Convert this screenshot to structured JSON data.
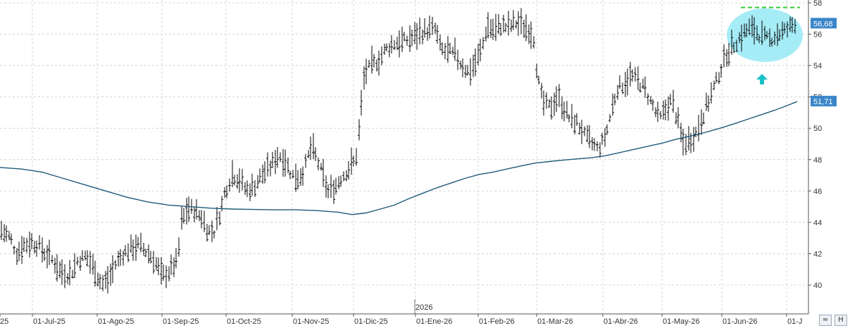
{
  "chart_data": {
    "type": "ohlc",
    "year_label": "2026",
    "x_tick_labels": [
      "25",
      "01-Jul-25",
      "01-Ago-25",
      "01-Sep-25",
      "01-Oct-25",
      "01-Nov-25",
      "01-Dic-25",
      "01-Ene-26",
      "01-Feb-26",
      "01-Mar-26",
      "01-Abr-26",
      "01-May-26",
      "01-Jun-26",
      "01-J"
    ],
    "y_ticks": [
      40,
      42,
      44,
      46,
      48,
      50,
      52,
      54,
      56,
      58
    ],
    "ylim": [
      38.5,
      58.1
    ],
    "grid": true,
    "last_price": {
      "value": 56.68,
      "label": "56,68",
      "color": "#3a86c8"
    },
    "moving_average": {
      "value": 51.71,
      "label": "51,71",
      "color": "#3a86c8",
      "line_color": "#1f5a7a"
    },
    "resistance_line": {
      "value": 57.7,
      "color": "#33cc33"
    },
    "highlight_color": "#a6ecf7",
    "arrow_color": "#19c2c9",
    "anchors": [
      [
        0,
        43.5
      ],
      [
        14,
        43
      ],
      [
        24,
        42
      ],
      [
        34,
        42.5
      ],
      [
        44,
        42.7
      ],
      [
        54,
        42.5
      ],
      [
        64,
        42
      ],
      [
        76,
        41.5
      ],
      [
        86,
        40.8
      ],
      [
        100,
        40.6
      ],
      [
        110,
        41.5
      ],
      [
        122,
        41.8
      ],
      [
        134,
        41
      ],
      [
        144,
        40
      ],
      [
        154,
        40.3
      ],
      [
        164,
        41.3
      ],
      [
        176,
        42
      ],
      [
        186,
        42.3
      ],
      [
        198,
        42.5
      ],
      [
        210,
        42
      ],
      [
        220,
        41.5
      ],
      [
        230,
        40.5
      ],
      [
        240,
        40.8
      ],
      [
        252,
        41.5
      ],
      [
        258,
        44
      ],
      [
        266,
        44.8
      ],
      [
        276,
        44.7
      ],
      [
        286,
        44.3
      ],
      [
        296,
        43.4
      ],
      [
        304,
        43.4
      ],
      [
        312,
        44.5
      ],
      [
        320,
        46
      ],
      [
        330,
        47
      ],
      [
        340,
        46.7
      ],
      [
        350,
        46
      ],
      [
        360,
        46.2
      ],
      [
        372,
        47
      ],
      [
        384,
        47.5
      ],
      [
        396,
        48.3
      ],
      [
        406,
        47.8
      ],
      [
        414,
        47
      ],
      [
        424,
        46.8
      ],
      [
        432,
        47.3
      ],
      [
        442,
        48.8
      ],
      [
        450,
        48
      ],
      [
        458,
        47
      ],
      [
        466,
        45.9
      ],
      [
        476,
        46.2
      ],
      [
        484,
        46.8
      ],
      [
        494,
        47.3
      ],
      [
        502,
        47.8
      ],
      [
        508,
        48.5
      ],
      [
        512,
        51
      ],
      [
        518,
        53.5
      ],
      [
        528,
        54
      ],
      [
        538,
        54.3
      ],
      [
        548,
        55
      ],
      [
        560,
        55.4
      ],
      [
        572,
        55.5
      ],
      [
        584,
        55.7
      ],
      [
        596,
        56
      ],
      [
        608,
        56.2
      ],
      [
        618,
        56.3
      ],
      [
        626,
        55
      ],
      [
        636,
        54.8
      ],
      [
        646,
        54.7
      ],
      [
        656,
        54
      ],
      [
        666,
        53.5
      ],
      [
        676,
        54.2
      ],
      [
        684,
        55
      ],
      [
        692,
        56.5
      ],
      [
        702,
        56.2
      ],
      [
        712,
        56.5
      ],
      [
        722,
        56.4
      ],
      [
        732,
        56.7
      ],
      [
        742,
        56.5
      ],
      [
        752,
        56.2
      ],
      [
        758,
        55.7
      ],
      [
        764,
        53
      ],
      [
        772,
        51.5
      ],
      [
        782,
        51.3
      ],
      [
        792,
        52
      ],
      [
        800,
        51.3
      ],
      [
        810,
        50.5
      ],
      [
        820,
        50.3
      ],
      [
        830,
        49.5
      ],
      [
        840,
        49
      ],
      [
        850,
        48.6
      ],
      [
        860,
        49.5
      ],
      [
        868,
        51
      ],
      [
        876,
        52.5
      ],
      [
        886,
        52.8
      ],
      [
        896,
        53.3
      ],
      [
        906,
        53
      ],
      [
        916,
        52.4
      ],
      [
        926,
        51.5
      ],
      [
        936,
        50.5
      ],
      [
        946,
        51.2
      ],
      [
        954,
        51.8
      ],
      [
        962,
        50.5
      ],
      [
        970,
        49
      ],
      [
        980,
        49.2
      ],
      [
        990,
        49.8
      ],
      [
        1000,
        51
      ],
      [
        1008,
        51.9
      ],
      [
        1016,
        52.8
      ],
      [
        1024,
        53.8
      ],
      [
        1032,
        54.7
      ],
      [
        1042,
        55.3
      ],
      [
        1052,
        55.8
      ],
      [
        1062,
        56.3
      ],
      [
        1072,
        56.2
      ],
      [
        1082,
        55.8
      ],
      [
        1092,
        55.6
      ],
      [
        1102,
        55.9
      ],
      [
        1112,
        56.1
      ],
      [
        1122,
        56.4
      ],
      [
        1128,
        56.7
      ],
      [
        1132,
        56.7
      ]
    ],
    "ma_anchors": [
      [
        0,
        47.5
      ],
      [
        30,
        47.4
      ],
      [
        60,
        47.2
      ],
      [
        90,
        46.8
      ],
      [
        120,
        46.4
      ],
      [
        150,
        46
      ],
      [
        180,
        45.6
      ],
      [
        210,
        45.3
      ],
      [
        240,
        45.1
      ],
      [
        270,
        45
      ],
      [
        300,
        44.9
      ],
      [
        330,
        44.85
      ],
      [
        360,
        44.82
      ],
      [
        390,
        44.8
      ],
      [
        420,
        44.8
      ],
      [
        450,
        44.75
      ],
      [
        480,
        44.65
      ],
      [
        500,
        44.5
      ],
      [
        520,
        44.6
      ],
      [
        540,
        44.85
      ],
      [
        560,
        45.1
      ],
      [
        580,
        45.5
      ],
      [
        600,
        45.85
      ],
      [
        620,
        46.2
      ],
      [
        640,
        46.5
      ],
      [
        660,
        46.8
      ],
      [
        680,
        47.05
      ],
      [
        700,
        47.2
      ],
      [
        720,
        47.4
      ],
      [
        740,
        47.6
      ],
      [
        760,
        47.78
      ],
      [
        780,
        47.88
      ],
      [
        800,
        47.97
      ],
      [
        820,
        48.05
      ],
      [
        840,
        48.12
      ],
      [
        860,
        48.25
      ],
      [
        880,
        48.45
      ],
      [
        900,
        48.65
      ],
      [
        920,
        48.85
      ],
      [
        940,
        49.05
      ],
      [
        960,
        49.3
      ],
      [
        980,
        49.5
      ],
      [
        1000,
        49.72
      ],
      [
        1020,
        49.97
      ],
      [
        1040,
        50.25
      ],
      [
        1060,
        50.55
      ],
      [
        1080,
        50.85
      ],
      [
        1100,
        51.15
      ],
      [
        1115,
        51.4
      ],
      [
        1132,
        51.7
      ]
    ]
  }
}
